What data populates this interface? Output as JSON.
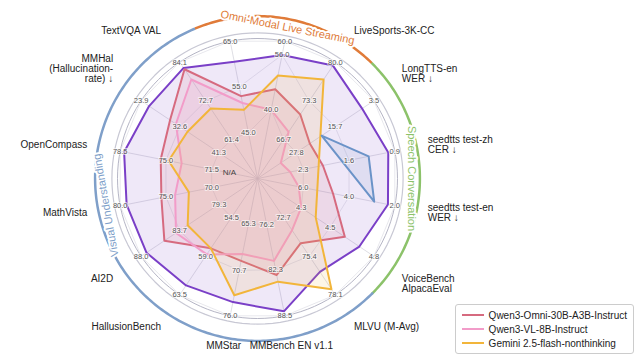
{
  "chart_data": {
    "type": "radar",
    "groups": [
      {
        "name": "Omni-Modal Live Streaming",
        "color": "#e07b39",
        "axes": [
          0,
          1,
          2
        ]
      },
      {
        "name": "Speech Conversation",
        "color": "#8cc26a",
        "axes": [
          3,
          4,
          5,
          6
        ]
      },
      {
        "name": "Visual Understanding",
        "color": "#7f9fc9",
        "axes": [
          7,
          8,
          9,
          10,
          11,
          12,
          13,
          14,
          15
        ]
      }
    ],
    "axes": [
      {
        "label": null,
        "lim": [
          35,
          65
        ],
        "ticks": [
          {
            "value": 45,
            "label": "45.0"
          },
          {
            "value": 55,
            "label": "55.0"
          },
          {
            "value": 65,
            "label": "65.0"
          }
        ]
      },
      {
        "label": null,
        "lim": [
          20,
          60
        ],
        "ticks": [
          {
            "value": 40,
            "label": "40.0"
          },
          {
            "value": 56,
            "label": "56.0"
          },
          {
            "value": 60,
            "label": "60.0"
          }
        ]
      },
      {
        "label": "LiveSports-3K-CC",
        "lim": [
          60,
          80
        ],
        "ticks": [
          66.7,
          73.3,
          {
            "value": 80,
            "label": "80.0"
          }
        ]
      },
      {
        "label": "LongTTS-en\nWER ↓",
        "lim": [
          40,
          3.5
        ],
        "ticks": [
          27.8,
          15.7,
          3.5
        ]
      },
      {
        "label": "seedtts test-zh\nCER ↓",
        "lim": [
          3.0,
          0.9
        ],
        "ticks": [
          2.3,
          1.6,
          0.9
        ]
      },
      {
        "label": "seedtts test-en\nWER ↓",
        "lim": [
          8,
          2
        ],
        "ticks": [
          {
            "value": 6,
            "label": "6.0"
          },
          {
            "value": 4,
            "label": "4.0"
          },
          {
            "value": 2,
            "label": "2.0"
          }
        ]
      },
      {
        "label": "VoiceBench\nAlpacaEval",
        "lim": [
          4.0,
          4.8
        ],
        "ticks": [
          4.3,
          4.5,
          4.8
        ]
      },
      {
        "label": "MLVU (M-Avg)",
        "lim": [
          70,
          78.1
        ],
        "ticks": [
          72.7,
          75.4,
          78.1
        ]
      },
      {
        "label": "MMBench EN v1.1",
        "lim": [
          70,
          88.5
        ],
        "ticks": [
          76.2,
          82.3,
          88.5
        ]
      },
      {
        "label": "MMStar",
        "lim": [
          60,
          76
        ],
        "ticks": [
          65.3,
          70.7,
          {
            "value": 76,
            "label": "76.0"
          }
        ]
      },
      {
        "label": "HallusionBench",
        "lim": [
          50,
          63.5
        ],
        "ticks": [
          54.5,
          {
            "value": 59,
            "label": "59.0"
          },
          63.5
        ]
      },
      {
        "label": "AI2D",
        "lim": [
          75,
          88
        ],
        "ticks": [
          79.3,
          83.7,
          {
            "value": 88,
            "label": "88.0"
          }
        ]
      },
      {
        "label": "MathVista",
        "lim": [
          65,
          80
        ],
        "ticks": [
          {
            "value": 70,
            "label": "70.0"
          },
          {
            "value": 75,
            "label": "75.0"
          },
          {
            "value": 80,
            "label": "80.0"
          }
        ]
      },
      {
        "label": "OpenCompass",
        "lim": [
          68,
          78.5
        ],
        "ticks": [
          71.5,
          {
            "value": 75,
            "label": "75.0"
          },
          78.5
        ]
      },
      {
        "label": "MMHal\n(Hallucination-\nrate) ↓",
        "lim": [
          50,
          23.9
        ],
        "ticks": [
          41.3,
          32.6,
          23.9
        ]
      },
      {
        "label": "TextVQA VAL",
        "lim": [
          50,
          84.1
        ],
        "ticks": [
          61.4,
          72.7,
          84.1
        ]
      }
    ],
    "series": [
      {
        "name": null,
        "color": "#7a3fc7",
        "values": [
          60.5,
          56,
          79.4,
          7.2,
          1.0,
          2.3,
          4.7,
          76.5,
          87.9,
          74.4,
          62.4,
          87.4,
          79.3,
          78.2,
          25.7,
          82.4
        ]
      },
      {
        "name": "Qwen3-Omni-30B-A3B-Instruct",
        "color": "#d66a7f",
        "values": [
          53,
          46,
          71,
          23.6,
          2.0,
          4.7,
          4.6,
          74.5,
          83.0,
          69.6,
          58.1,
          85.4,
          75.5,
          75.4,
          30.4,
          82.0
        ]
      },
      {
        "name": "Qwen3-VL-8B-Instruct",
        "color": "#f29cc9",
        "values": [
          51.5,
          40,
          68,
          32.7,
          2.5,
          6.2,
          4.3,
          73.6,
          81.1,
          68.8,
          58.8,
          84.1,
          74,
          73.8,
          31.7,
          79
        ]
      },
      {
        "name": "Gemini 2.5-flash-nonthinking",
        "color": "#f2b53a",
        "values": [
          50,
          50,
          77,
          null,
          null,
          null,
          4.4,
          77.7,
          83.9,
          73.6,
          58.1,
          82.8,
          72.5,
          74.8,
          34.3,
          70.5
        ]
      },
      {
        "name": null,
        "color": "#6b93c8",
        "values": [
          null,
          null,
          null,
          19.9,
          1.3,
          2.9,
          null,
          null,
          null,
          null,
          null,
          null,
          null,
          null,
          null,
          null
        ]
      }
    ],
    "annotations": [
      {
        "text": "N/A"
      }
    ],
    "legend": "bottom-right"
  }
}
